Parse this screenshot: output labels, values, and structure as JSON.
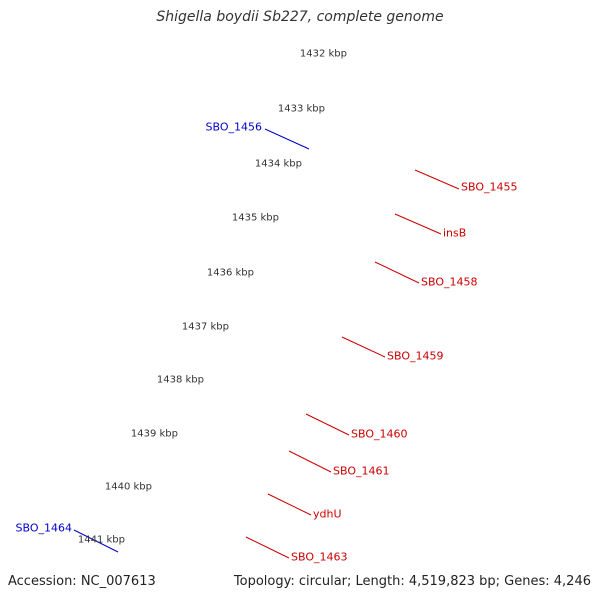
{
  "title": "Shigella boydii Sb227, complete genome",
  "footer": {
    "accession": "Accession: NC_007613",
    "info": "Topology: circular; Length: 4,519,823 bp; Genes: 4,246"
  },
  "colors": {
    "backbone": "#8c8c8c",
    "tick": "#1f7a1f",
    "cds_forward": "#0000ee",
    "cds_reverse": "#ee0000",
    "rna": "#00dada",
    "mobile_element": "#ee2a9a",
    "other": "#707070",
    "label_forward": "#0000cc",
    "label_reverse": "#cc0000"
  },
  "ticks": [
    "1432 kbp",
    "1433 kbp",
    "1434 kbp",
    "1435 kbp",
    "1436 kbp",
    "1437 kbp",
    "1438 kbp",
    "1439 kbp",
    "1440 kbp",
    "1441 kbp"
  ],
  "genes": [
    {
      "name": "SBO_1456",
      "strand": "forward"
    },
    {
      "name": "SBO_1455",
      "strand": "reverse"
    },
    {
      "name": "insB",
      "strand": "reverse"
    },
    {
      "name": "SBO_1458",
      "strand": "reverse"
    },
    {
      "name": "SBO_1459",
      "strand": "reverse"
    },
    {
      "name": "SBO_1460",
      "strand": "reverse"
    },
    {
      "name": "SBO_1461",
      "strand": "reverse"
    },
    {
      "name": "ydhU",
      "strand": "reverse"
    },
    {
      "name": "SBO_1463",
      "strand": "reverse"
    },
    {
      "name": "SBO_1464",
      "strand": "forward"
    }
  ]
}
